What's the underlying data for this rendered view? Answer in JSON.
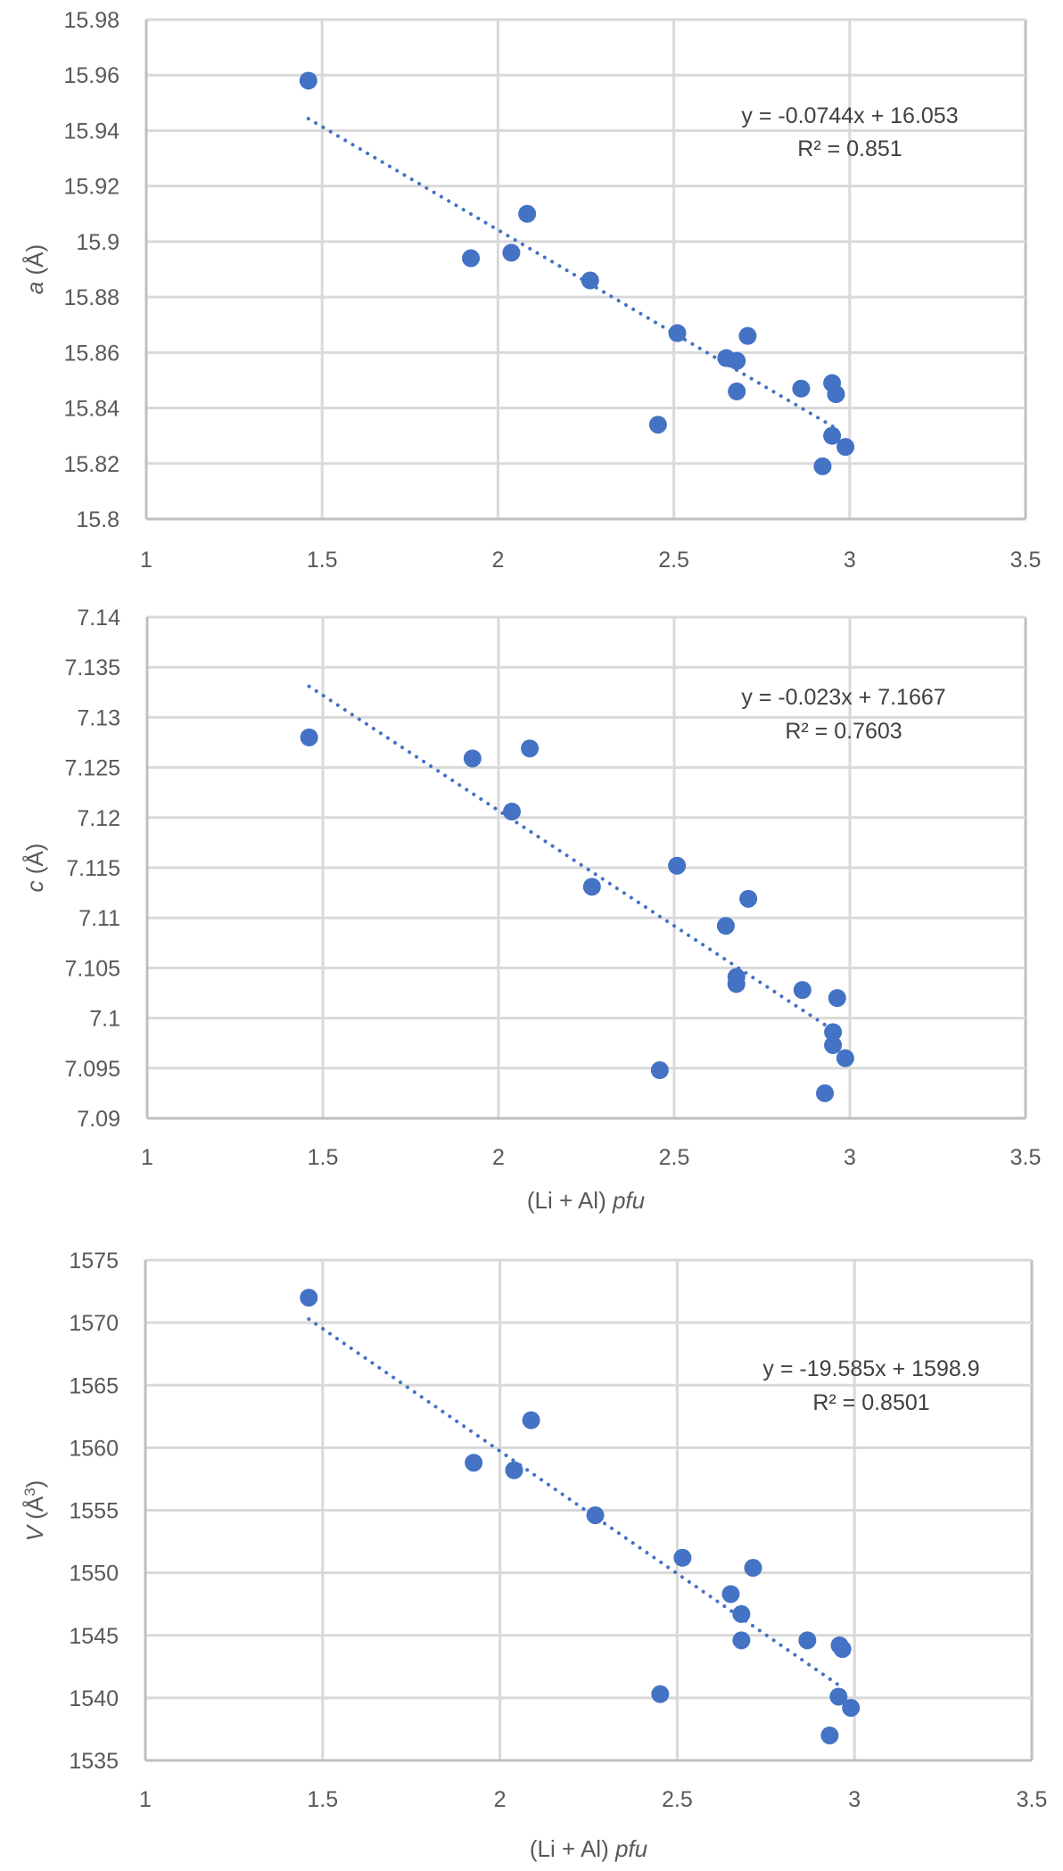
{
  "colors": {
    "marker": "#4472C4",
    "grid": "#D9D9D9",
    "axis": "#BFBFBF",
    "text": "#595959"
  },
  "chart_data": [
    {
      "type": "scatter",
      "title": "",
      "xlabel": "",
      "ylabel_italic": "a",
      "ylabel_rest": " (Å)",
      "xlim": [
        1,
        3.5
      ],
      "ylim": [
        15.8,
        15.98
      ],
      "x_ticks": [
        "1",
        "1.5",
        "2",
        "2.5",
        "3",
        "3.5"
      ],
      "y_ticks": [
        "15.8",
        "15.82",
        "15.84",
        "15.86",
        "15.88",
        "15.9",
        "15.92",
        "15.94",
        "15.96",
        "15.98"
      ],
      "grid": true,
      "legend": "none",
      "trendline": {
        "type": "linear",
        "slope": -0.0744,
        "intercept": 16.053,
        "style": "dotted"
      },
      "equation": "y = -0.0744x + 16.053",
      "r_squared": "R² = 0.851",
      "points": [
        {
          "x": 1.461,
          "y": 15.958
        },
        {
          "x": 1.923,
          "y": 15.894
        },
        {
          "x": 2.038,
          "y": 15.896
        },
        {
          "x": 2.083,
          "y": 15.91
        },
        {
          "x": 2.262,
          "y": 15.886
        },
        {
          "x": 2.455,
          "y": 15.834
        },
        {
          "x": 2.51,
          "y": 15.867
        },
        {
          "x": 2.649,
          "y": 15.858
        },
        {
          "x": 2.679,
          "y": 15.857
        },
        {
          "x": 2.679,
          "y": 15.846
        },
        {
          "x": 2.71,
          "y": 15.866
        },
        {
          "x": 2.862,
          "y": 15.847
        },
        {
          "x": 2.95,
          "y": 15.849
        },
        {
          "x": 2.961,
          "y": 15.845
        },
        {
          "x": 2.95,
          "y": 15.83
        },
        {
          "x": 2.988,
          "y": 15.826
        },
        {
          "x": 2.923,
          "y": 15.819
        }
      ]
    },
    {
      "type": "scatter",
      "title": "",
      "xlabel_plain": "(Li + Al) ",
      "xlabel_italic": "pfu",
      "ylabel_italic": "c",
      "ylabel_rest": " (Å)",
      "xlim": [
        1,
        3.5
      ],
      "ylim": [
        7.09,
        7.14
      ],
      "x_ticks": [
        "1",
        "1.5",
        "2",
        "2.5",
        "3",
        "3.5"
      ],
      "y_ticks": [
        "7.09",
        "7.095",
        "7.1",
        "7.105",
        "7.11",
        "7.115",
        "7.12",
        "7.125",
        "7.13",
        "7.135",
        "7.14"
      ],
      "grid": true,
      "legend": "none",
      "trendline": {
        "type": "linear",
        "slope": -0.023,
        "intercept": 7.1667,
        "style": "dotted"
      },
      "equation": "y = -0.023x + 7.1667",
      "r_squared": "R² = 0.7603",
      "points": [
        {
          "x": 1.461,
          "y": 7.128
        },
        {
          "x": 1.926,
          "y": 7.1259
        },
        {
          "x": 2.038,
          "y": 7.1206
        },
        {
          "x": 2.089,
          "y": 7.1269
        },
        {
          "x": 2.266,
          "y": 7.1131
        },
        {
          "x": 2.459,
          "y": 7.0948
        },
        {
          "x": 2.508,
          "y": 7.1152
        },
        {
          "x": 2.647,
          "y": 7.1092
        },
        {
          "x": 2.677,
          "y": 7.1041
        },
        {
          "x": 2.677,
          "y": 7.1034
        },
        {
          "x": 2.711,
          "y": 7.1119
        },
        {
          "x": 2.865,
          "y": 7.1028
        },
        {
          "x": 2.964,
          "y": 7.102
        },
        {
          "x": 2.952,
          "y": 7.0986
        },
        {
          "x": 2.952,
          "y": 7.0973
        },
        {
          "x": 2.987,
          "y": 7.096
        },
        {
          "x": 2.929,
          "y": 7.0925
        }
      ]
    },
    {
      "type": "scatter",
      "title": "",
      "xlabel_plain": "(Li + Al) ",
      "xlabel_italic": "pfu",
      "ylabel_italic": "V",
      "ylabel_rest": " (Å",
      "ylabel_sup": "3",
      "ylabel_close": ")",
      "xlim": [
        1,
        3.5
      ],
      "ylim": [
        1535,
        1575
      ],
      "x_ticks": [
        "1",
        "1.5",
        "2",
        "2.5",
        "3",
        "3.5"
      ],
      "y_ticks": [
        "1535",
        "1540",
        "1545",
        "1550",
        "1555",
        "1560",
        "1565",
        "1570",
        "1575"
      ],
      "grid": true,
      "legend": "none",
      "trendline": {
        "type": "linear",
        "slope": -19.585,
        "intercept": 1598.9,
        "style": "dotted"
      },
      "equation": "y = -19.585x + 1598.9",
      "r_squared": "R² = 0.8501",
      "points": [
        {
          "x": 1.461,
          "y": 1572.0
        },
        {
          "x": 1.926,
          "y": 1558.8
        },
        {
          "x": 2.04,
          "y": 1558.2
        },
        {
          "x": 2.088,
          "y": 1562.2
        },
        {
          "x": 2.269,
          "y": 1554.6
        },
        {
          "x": 2.452,
          "y": 1540.3
        },
        {
          "x": 2.515,
          "y": 1551.2
        },
        {
          "x": 2.651,
          "y": 1548.3
        },
        {
          "x": 2.681,
          "y": 1546.7
        },
        {
          "x": 2.681,
          "y": 1544.6
        },
        {
          "x": 2.714,
          "y": 1550.4
        },
        {
          "x": 2.867,
          "y": 1544.6
        },
        {
          "x": 2.958,
          "y": 1544.2
        },
        {
          "x": 2.966,
          "y": 1543.9
        },
        {
          "x": 2.955,
          "y": 1540.1
        },
        {
          "x": 2.99,
          "y": 1539.2
        },
        {
          "x": 2.93,
          "y": 1537.0
        }
      ]
    }
  ]
}
